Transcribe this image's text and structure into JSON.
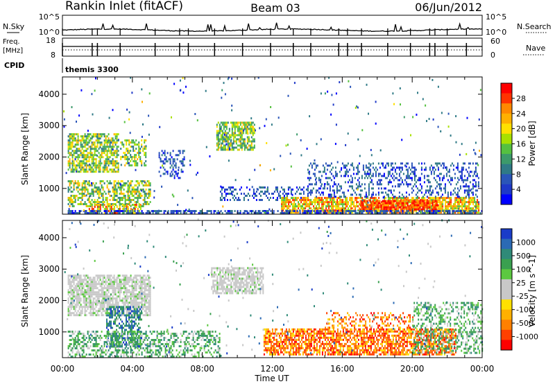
{
  "header": {
    "site": "Rankin Inlet (fitACF)",
    "beam": "Beam 03",
    "date": "06/Jun/2012"
  },
  "aux_panels": {
    "nsky_label": "N.Sky",
    "nsky_ticks": [
      "10^5",
      "10^0"
    ],
    "nsearch_label": "N.Search",
    "nsearch_ticks": [
      "10^5",
      "10^0"
    ],
    "freq_label": "Freq.",
    "freq_unit": "[MHz]",
    "freq_ticks": [
      "18",
      "8"
    ],
    "nave_label": "Nave",
    "nave_ticks": [
      "60",
      "0"
    ],
    "cpid_label": "CPID",
    "cpid_value": "themis 3300"
  },
  "chart_data": [
    {
      "type": "heatmap",
      "panel": "power",
      "ylabel": "Slant Range [km]",
      "xlabel": "Time UT",
      "xlim": [
        "00:00",
        "24:00"
      ],
      "ylim": [
        180,
        4550
      ],
      "x_ticks": [
        "00:00",
        "04:00",
        "08:00",
        "12:00",
        "16:00",
        "20:00",
        "00:00"
      ],
      "y_ticks": [
        1000,
        2000,
        3000,
        4000
      ],
      "colorbar": {
        "label": "Power [dB]",
        "ticks": [
          "28",
          "24",
          "20",
          "16",
          "12",
          "8",
          "4"
        ],
        "colors": [
          "#ff0000",
          "#ff3300",
          "#ff8800",
          "#ffb000",
          "#ffe000",
          "#a8e000",
          "#55c040",
          "#3c9a6a",
          "#2f7a86",
          "#2a55b8",
          "#1e38c8",
          "#0000ff"
        ]
      },
      "regions": [
        {
          "t0": 0.3,
          "t1": 3.2,
          "r0": 1500,
          "r1": 2700,
          "level": "mid",
          "density": 0.7
        },
        {
          "t0": 3.3,
          "t1": 4.8,
          "r0": 1700,
          "r1": 2500,
          "level": "mid",
          "density": 0.5
        },
        {
          "t0": 0.3,
          "t1": 5.0,
          "r0": 400,
          "r1": 1200,
          "level": "mid",
          "density": 0.55
        },
        {
          "t0": 1.5,
          "t1": 4.5,
          "r0": 180,
          "r1": 450,
          "level": "high",
          "density": 0.6
        },
        {
          "t0": 8.8,
          "t1": 11.0,
          "r0": 2200,
          "r1": 3100,
          "level": "mid",
          "density": 0.7
        },
        {
          "t0": 9.0,
          "t1": 14.0,
          "r0": 600,
          "r1": 1000,
          "level": "low",
          "density": 0.35
        },
        {
          "t0": 12.5,
          "t1": 23.8,
          "r0": 200,
          "r1": 700,
          "level": "high",
          "density": 0.75
        },
        {
          "t0": 17.0,
          "t1": 21.5,
          "r0": 300,
          "r1": 600,
          "level": "max",
          "density": 0.8
        },
        {
          "t0": 14.0,
          "t1": 23.8,
          "r0": 700,
          "r1": 1800,
          "level": "low",
          "density": 0.3
        },
        {
          "t0": 5.5,
          "t1": 7.0,
          "r0": 1300,
          "r1": 2200,
          "level": "low",
          "density": 0.35
        },
        {
          "t0": 0.3,
          "t1": 24.0,
          "r0": 180,
          "r1": 260,
          "level": "low",
          "density": 0.6
        }
      ]
    },
    {
      "type": "heatmap",
      "panel": "velocity",
      "ylabel": "Slant Range [km]",
      "xlabel": "Time UT",
      "xlim": [
        "00:00",
        "24:00"
      ],
      "ylim": [
        180,
        4550
      ],
      "x_ticks": [
        "00:00",
        "04:00",
        "08:00",
        "12:00",
        "16:00",
        "20:00",
        "00:00"
      ],
      "y_ticks": [
        1000,
        2000,
        3000,
        4000
      ],
      "colorbar": {
        "label": "Velocity [m s^-1]",
        "ticks": [
          "1000",
          "500",
          "100",
          "25",
          "-25",
          "-100",
          "-500",
          "-1000"
        ],
        "colors": [
          "#1a3cc8",
          "#2b6ab4",
          "#2f8a78",
          "#3aa050",
          "#5cc840",
          "#c8c8c8",
          "#c8c8c8",
          "#ffe000",
          "#ffb000",
          "#ff8000",
          "#ff4000",
          "#ff0000"
        ]
      },
      "regions": [
        {
          "t0": 0.3,
          "t1": 5.0,
          "r0": 1500,
          "r1": 2800,
          "level": "ground",
          "density": 0.75
        },
        {
          "t0": 8.5,
          "t1": 11.5,
          "r0": 2200,
          "r1": 3000,
          "level": "ground",
          "density": 0.7
        },
        {
          "t0": 2.5,
          "t1": 4.5,
          "r0": 500,
          "r1": 1800,
          "level": "toward",
          "density": 0.5
        },
        {
          "t0": 0.3,
          "t1": 9.0,
          "r0": 180,
          "r1": 1000,
          "level": "toward_weak",
          "density": 0.45
        },
        {
          "t0": 11.5,
          "t1": 22.5,
          "r0": 250,
          "r1": 1100,
          "level": "away",
          "density": 0.7
        },
        {
          "t0": 15.0,
          "t1": 20.0,
          "r0": 1100,
          "r1": 1600,
          "level": "away",
          "density": 0.3
        },
        {
          "t0": 20.0,
          "t1": 24.0,
          "r0": 300,
          "r1": 1900,
          "level": "toward_weak",
          "density": 0.4
        }
      ]
    }
  ]
}
